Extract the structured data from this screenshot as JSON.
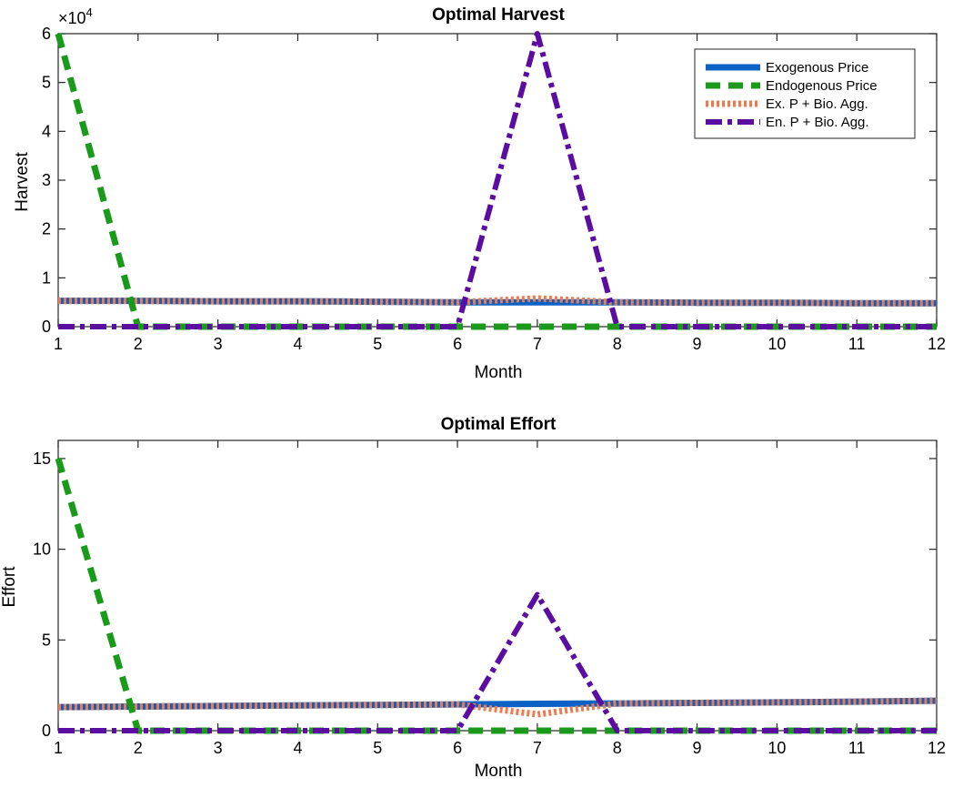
{
  "colors": {
    "exogenous": "#0b62c4",
    "endogenous": "#1a9a1a",
    "ex_bio": "#f07a4e",
    "en_bio": "#5a0da0"
  },
  "chart_data": [
    {
      "type": "line",
      "title": "Optimal Harvest",
      "xlabel": "Month",
      "ylabel": "Harvest",
      "exponent_label": "×10^4",
      "exponent_base": "×10",
      "exponent_power": "4",
      "xlim": [
        1,
        12
      ],
      "ylim": [
        0,
        6
      ],
      "grid": false,
      "legend_position": "top-right",
      "x": [
        1,
        2,
        3,
        4,
        5,
        6,
        7,
        8,
        9,
        10,
        11,
        12
      ],
      "x_ticks": [
        "1",
        "2",
        "3",
        "4",
        "5",
        "6",
        "7",
        "8",
        "9",
        "10",
        "11",
        "12"
      ],
      "y_ticks": [
        "0",
        "1",
        "2",
        "3",
        "4",
        "5",
        "6"
      ],
      "series": [
        {
          "name": "Exogenous Price",
          "color_key": "exogenous",
          "style": "solid",
          "values": [
            0.53,
            0.53,
            0.52,
            0.52,
            0.51,
            0.5,
            0.5,
            0.5,
            0.49,
            0.49,
            0.48,
            0.48
          ]
        },
        {
          "name": "Endogenous Price",
          "color_key": "endogenous",
          "style": "dashed",
          "values": [
            6.0,
            0,
            0,
            0,
            0,
            0,
            0,
            0,
            0,
            0,
            0,
            0
          ]
        },
        {
          "name": "Ex. P + Bio. Agg.",
          "color_key": "ex_bio",
          "style": "dotted",
          "values": [
            0.53,
            0.53,
            0.52,
            0.52,
            0.51,
            0.5,
            0.58,
            0.5,
            0.49,
            0.49,
            0.48,
            0.48
          ]
        },
        {
          "name": "En. P + Bio. Agg.",
          "color_key": "en_bio",
          "style": "dashdot",
          "values": [
            0,
            0,
            0,
            0,
            0,
            0,
            6.0,
            0,
            0,
            0,
            0,
            0
          ]
        }
      ]
    },
    {
      "type": "line",
      "title": "Optimal Effort",
      "xlabel": "Month",
      "ylabel": "Effort",
      "xlim": [
        1,
        12
      ],
      "ylim": [
        0,
        16
      ],
      "grid": false,
      "x": [
        1,
        2,
        3,
        4,
        5,
        6,
        7,
        8,
        9,
        10,
        11,
        12
      ],
      "x_ticks": [
        "1",
        "2",
        "3",
        "4",
        "5",
        "6",
        "7",
        "8",
        "9",
        "10",
        "11",
        "12"
      ],
      "y_ticks": [
        "0",
        "5",
        "10",
        "15"
      ],
      "series": [
        {
          "name": "Exogenous Price",
          "color_key": "exogenous",
          "style": "solid",
          "values": [
            1.3,
            1.33,
            1.36,
            1.39,
            1.42,
            1.45,
            1.48,
            1.5,
            1.53,
            1.56,
            1.6,
            1.65
          ]
        },
        {
          "name": "Endogenous Price",
          "color_key": "endogenous",
          "style": "dashed",
          "values": [
            15.0,
            0,
            0,
            0,
            0,
            0,
            0,
            0,
            0,
            0,
            0,
            0
          ]
        },
        {
          "name": "Ex. P + Bio. Agg.",
          "color_key": "ex_bio",
          "style": "dotted",
          "values": [
            1.3,
            1.33,
            1.36,
            1.39,
            1.42,
            1.45,
            0.9,
            1.5,
            1.53,
            1.56,
            1.6,
            1.65
          ]
        },
        {
          "name": "En. P + Bio. Agg.",
          "color_key": "en_bio",
          "style": "dashdot",
          "values": [
            0,
            0,
            0,
            0,
            0,
            0,
            7.5,
            0,
            0,
            0,
            0,
            0
          ]
        }
      ]
    }
  ]
}
